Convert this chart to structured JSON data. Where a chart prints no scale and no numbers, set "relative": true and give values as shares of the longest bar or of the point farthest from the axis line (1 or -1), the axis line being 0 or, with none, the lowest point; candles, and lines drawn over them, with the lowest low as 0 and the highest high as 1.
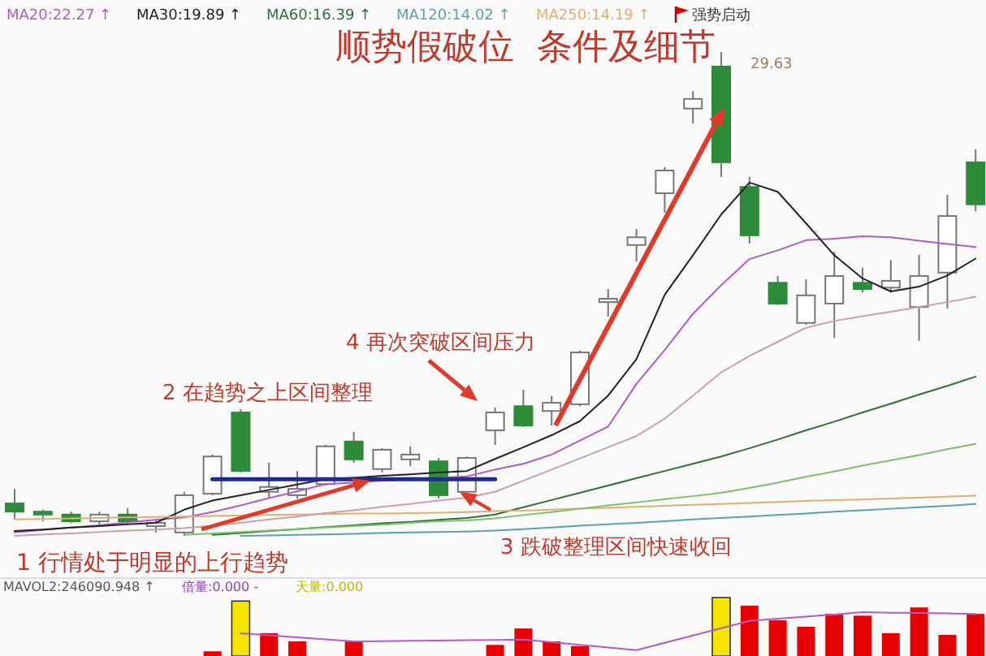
{
  "chart_data": [
    {
      "type": "candlestick",
      "relative": true,
      "title": "顺势假破位  条件及细节",
      "legend": "top left",
      "categories": [
        null,
        null,
        null,
        null,
        null,
        null,
        null,
        null,
        null,
        null,
        null,
        null,
        null,
        null,
        null,
        null,
        null,
        null,
        null,
        null,
        null,
        null,
        null,
        null,
        null,
        null,
        null,
        null,
        null,
        null,
        null,
        null,
        null,
        null,
        null
      ],
      "ohlc": [
        [
          0.067,
          0.097,
          0.034,
          0.05
        ],
        [
          0.05,
          0.054,
          0.03,
          0.044
        ],
        [
          0.044,
          0.05,
          0.027,
          0.03
        ],
        [
          0.03,
          0.05,
          0.023,
          0.044
        ],
        [
          0.044,
          0.057,
          0.023,
          0.03
        ],
        [
          0.02,
          0.034,
          0.007,
          0.027
        ],
        [
          0.007,
          0.091,
          0,
          0.084
        ],
        [
          0.087,
          0.168,
          0.084,
          0.164
        ],
        [
          0.255,
          0.262,
          0.131,
          0.134
        ],
        [
          0.091,
          0.151,
          0.077,
          0.101
        ],
        [
          0.084,
          0.134,
          0.077,
          0.097
        ],
        [
          0.107,
          0.188,
          0.104,
          0.185
        ],
        [
          0.195,
          0.215,
          0.151,
          0.158
        ],
        [
          0.138,
          0.181,
          0.131,
          0.178
        ],
        [
          0.158,
          0.185,
          0.144,
          0.168
        ],
        [
          0.154,
          0.161,
          0.077,
          0.084
        ],
        [
          0.091,
          0.164,
          0.084,
          0.161
        ],
        [
          0.218,
          0.265,
          0.188,
          0.255
        ],
        [
          0.268,
          0.302,
          0.225,
          0.228
        ],
        [
          0.258,
          0.289,
          0.228,
          0.275
        ],
        [
          0.272,
          0.383,
          0.268,
          0.379
        ],
        [
          0.483,
          0.51,
          0.453,
          0.49
        ],
        [
          0.601,
          0.634,
          0.567,
          0.617
        ],
        [
          0.708,
          0.762,
          0.668,
          0.755
        ],
        [
          0.883,
          0.919,
          0.852,
          0.903
        ],
        [
          0.97,
          1,
          0.742,
          0.772
        ],
        [
          0.721,
          0.742,
          0.604,
          0.621
        ],
        [
          0.523,
          0.537,
          0.477,
          0.48
        ],
        [
          0.44,
          0.53,
          0.436,
          0.497
        ],
        [
          0.48,
          0.587,
          0.409,
          0.537
        ],
        [
          0.523,
          0.554,
          0.503,
          0.51
        ],
        [
          0.513,
          0.57,
          0.503,
          0.527
        ],
        [
          0.473,
          0.581,
          0.403,
          0.537
        ],
        [
          0.544,
          0.705,
          0.47,
          0.661
        ],
        [
          0.772,
          0.799,
          0.671,
          0.685
        ]
      ],
      "colors": [
        "#2e8b3a",
        "#2e8b3a",
        "#2e8b3a",
        "#ffffff",
        "#2e8b3a",
        "#ffffff",
        "#ffffff",
        "#ffffff",
        "#2e8b3a",
        "#ffffff",
        "#ffffff",
        "#ffffff",
        "#2e8b3a",
        "#ffffff",
        "#ffffff",
        "#2e8b3a",
        "#ffffff",
        "#ffffff",
        "#2e8b3a",
        "#ffffff",
        "#ffffff",
        "#ffffff",
        "#ffffff",
        "#ffffff",
        "#ffffff",
        "#2e8b3a",
        "#2e8b3a",
        "#2e8b3a",
        "#ffffff",
        "#ffffff",
        "#2e8b3a",
        "#ffffff",
        "#ffffff",
        "#ffffff",
        "#2e8b3a"
      ],
      "series": [
        {
          "type": "line",
          "name": "MA20:22.27 ↑",
          "color": "#b05cc8",
          "values": [
            0.007,
            0.012,
            0.017,
            0.022,
            0.028,
            0.033,
            0.038,
            0.049,
            0.063,
            0.078,
            0.092,
            0.107,
            0.11,
            0.114,
            0.117,
            0.12,
            0.123,
            0.137,
            0.149,
            0.168,
            0.197,
            0.226,
            0.314,
            0.384,
            0.459,
            0.518,
            0.572,
            0.59,
            0.611,
            0.614,
            0.619,
            0.617,
            0.61,
            0.603,
            0.597
          ]
        },
        {
          "type": "line",
          "name": "MA30:19.89 ↑",
          "color": "#222222",
          "values": [
            0.01,
            0.013,
            0.017,
            0.02,
            0.024,
            0.027,
            0.054,
            0.073,
            0.084,
            0.095,
            0.106,
            0.117,
            0.12,
            0.124,
            0.127,
            0.131,
            0.134,
            0.159,
            0.183,
            0.208,
            0.237,
            0.29,
            0.365,
            0.498,
            0.58,
            0.664,
            0.73,
            0.711,
            0.646,
            0.58,
            0.532,
            0.505,
            0.515,
            0.538,
            0.573
          ]
        },
        {
          "type": "line",
          "name": "MA60:16.39 ↑",
          "color": "#2f6f3a",
          "values": [
            null,
            null,
            null,
            null,
            null,
            null,
            null,
            0.002,
            0.006,
            0.01,
            0.014,
            0.018,
            0.022,
            0.026,
            0.029,
            0.033,
            0.037,
            0.044,
            0.059,
            0.074,
            0.089,
            0.104,
            0.119,
            0.134,
            0.149,
            0.164,
            0.181,
            0.199,
            0.218,
            0.236,
            0.255,
            0.273,
            0.292,
            0.31,
            0.329
          ]
        },
        {
          "type": "line",
          "name": "MA120:14.02 ↑",
          "color": "#5aa0b0",
          "values": [
            null,
            null,
            null,
            null,
            null,
            null,
            null,
            null,
            0,
            0.001,
            0.002,
            0.003,
            0.004,
            0.006,
            0.007,
            0.008,
            0.009,
            0.011,
            0.014,
            0.017,
            0.021,
            0.024,
            0.027,
            0.03,
            0.034,
            0.037,
            0.04,
            0.043,
            0.046,
            0.05,
            0.053,
            0.056,
            0.059,
            0.062,
            0.066
          ]
        },
        {
          "type": "line",
          "name": "MA250:14.19 ↑",
          "color": "#e0b070",
          "values": [
            0.034,
            0.035,
            0.036,
            0.037,
            0.038,
            0.039,
            0.04,
            0.041,
            0.042,
            0.043,
            0.044,
            0.045,
            0.046,
            0.046,
            0.047,
            0.048,
            0.049,
            0.051,
            0.052,
            0.054,
            0.056,
            0.058,
            0.06,
            0.062,
            0.064,
            0.066,
            0.068,
            0.07,
            0.072,
            0.074,
            0.075,
            0.077,
            0.079,
            0.081,
            0.083
          ]
        },
        {
          "type": "line",
          "color": "#c8a0b0",
          "values": [
            0,
            0.003,
            0.005,
            0.008,
            0.011,
            0.013,
            0.016,
            0.021,
            0.027,
            0.034,
            0.04,
            0.047,
            0.053,
            0.06,
            0.066,
            0.073,
            0.079,
            0.091,
            0.114,
            0.137,
            0.16,
            0.183,
            0.206,
            0.242,
            0.29,
            0.338,
            0.372,
            0.401,
            0.43,
            0.444,
            0.454,
            0.463,
            0.473,
            0.483,
            0.494
          ]
        },
        {
          "type": "line",
          "color": "#7cbf6c",
          "values": [
            null,
            null,
            null,
            null,
            null,
            null,
            0.002,
            0.005,
            0.008,
            0.011,
            0.014,
            0.017,
            0.02,
            0.023,
            0.027,
            0.03,
            0.032,
            0.036,
            0.043,
            0.049,
            0.056,
            0.063,
            0.069,
            0.076,
            0.082,
            0.089,
            0.099,
            0.11,
            0.122,
            0.133,
            0.145,
            0.156,
            0.167,
            0.179,
            0.19
          ]
        },
        {
          "type": "line",
          "color": "#1f2a8a",
          "values": [
            null,
            null,
            null,
            null,
            null,
            null,
            null,
            0.117,
            0.117,
            0.117,
            0.117,
            0.117,
            0.117,
            0.117,
            0.117,
            0.117,
            0.117,
            0.117,
            null,
            null,
            null,
            null,
            null,
            null,
            null,
            null,
            null,
            null,
            null,
            null,
            null,
            null,
            null,
            null,
            null
          ]
        }
      ],
      "annotations": [
        "29.63",
        "1 行情处于明显的上行趋势",
        "2 在趋势之上区间整理",
        "3 跌破整理区间快速收回",
        "4 再次突破区间压力",
        "强势启动"
      ]
    },
    {
      "type": "bar",
      "relative": true,
      "categories": [
        null,
        null,
        null,
        null,
        null,
        null,
        null,
        null,
        null,
        null,
        null,
        null,
        null,
        null,
        null,
        null,
        null,
        null,
        null,
        null,
        null,
        null,
        null,
        null,
        null,
        null,
        null,
        null,
        null,
        null,
        null,
        null,
        null,
        null,
        null
      ],
      "series": [
        {
          "type": "bar",
          "values": [
            null,
            null,
            null,
            null,
            null,
            null,
            null,
            0.08,
            0.94,
            0.39,
            0.25,
            null,
            0.25,
            null,
            null,
            null,
            null,
            0.19,
            0.47,
            0.25,
            0.17,
            null,
            null,
            null,
            null,
            1,
            0.86,
            0.61,
            0.5,
            0.72,
            0.69,
            0.39,
            0.83,
            0.36,
            0.72
          ],
          "colors": [
            null,
            null,
            null,
            null,
            null,
            null,
            null,
            "#e60000",
            "#f5e300",
            "#e60000",
            "#e60000",
            null,
            "#e60000",
            null,
            null,
            null,
            null,
            "#e60000",
            "#e60000",
            "#e60000",
            "#e60000",
            null,
            null,
            null,
            null,
            "#f5e300",
            "#e60000",
            "#e60000",
            "#e60000",
            "#e60000",
            "#e60000",
            "#e60000",
            "#e60000",
            "#e60000",
            "#e60000"
          ]
        },
        {
          "type": "line",
          "color": "#b05cc8",
          "values": [
            null,
            null,
            null,
            null,
            null,
            null,
            null,
            null,
            0.39,
            0.355,
            0.32,
            0.285,
            0.25,
            0.255,
            0.26,
            0.265,
            0.27,
            0.275,
            0.28,
            0.235,
            0.19,
            0.145,
            0.1,
            0.225,
            0.35,
            0.475,
            0.6,
            0.64,
            0.675,
            0.71,
            0.75,
            0.74,
            0.735,
            0.728,
            0.72
          ]
        }
      ],
      "annotations": [
        "MAVOL2:246090.948 ↑",
        "倍量:0.000 -",
        "天量:0.000"
      ]
    }
  ]
}
